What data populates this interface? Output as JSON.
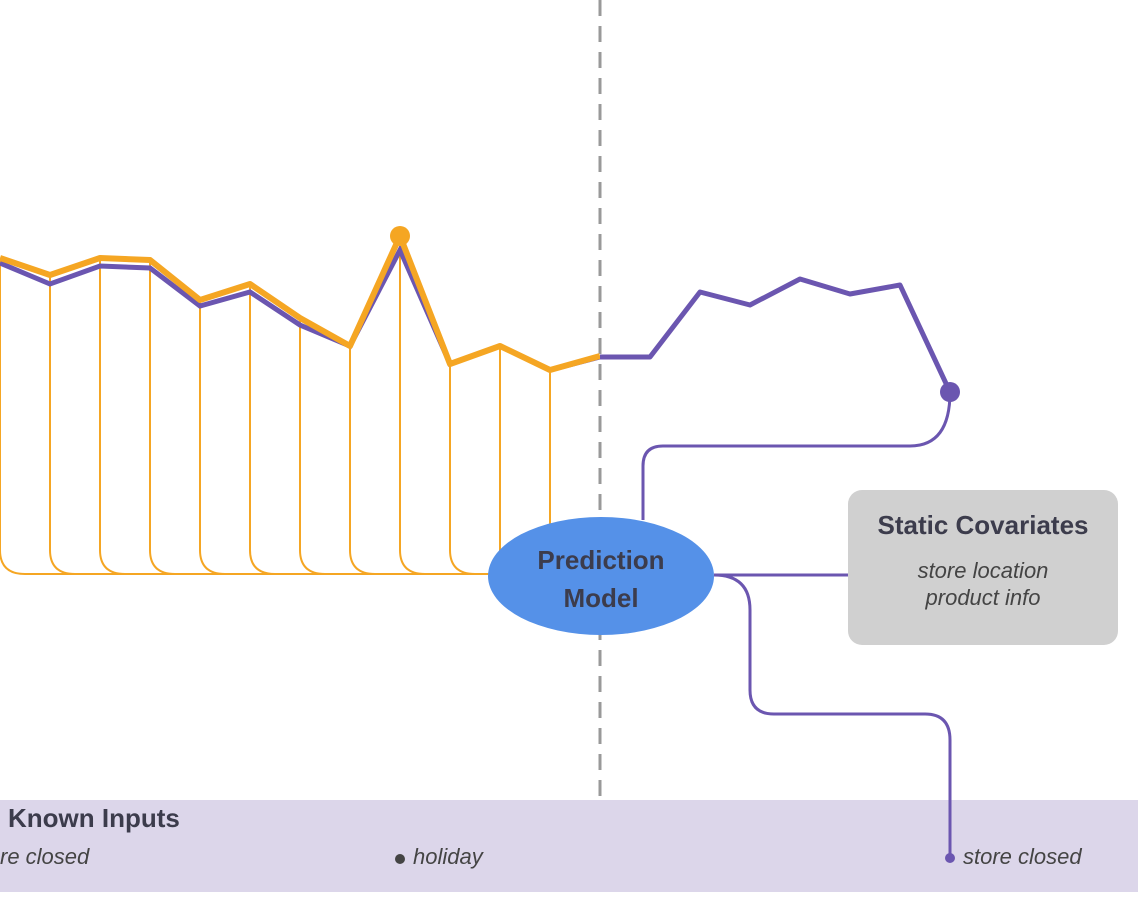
{
  "model": {
    "lines": [
      "Prediction",
      "Model"
    ]
  },
  "static_covariates": {
    "title": "Static Covariates",
    "items": [
      "store location",
      "product info"
    ]
  },
  "known_inputs": {
    "title": "Known Inputs",
    "items": [
      "re closed",
      "holiday",
      "store closed"
    ]
  }
}
